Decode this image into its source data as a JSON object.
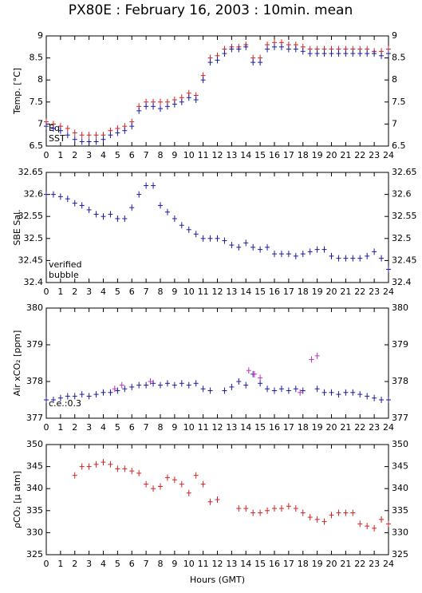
{
  "chart_data": [
    {
      "type": "scatter",
      "title": "PX80E : February 16, 2003 : 10min. mean",
      "ylabel": "Temp. [°C]",
      "xlim": [
        0,
        24
      ],
      "xticks": [
        0,
        1,
        2,
        3,
        4,
        5,
        6,
        7,
        8,
        9,
        10,
        11,
        12,
        13,
        14,
        15,
        16,
        17,
        18,
        19,
        20,
        21,
        22,
        23,
        24
      ],
      "ylim": [
        6.5,
        9
      ],
      "yticks": [
        6.5,
        7,
        7.5,
        8,
        8.5,
        9
      ],
      "series": [
        {
          "name": "Eq",
          "color": "#d42020",
          "x": [
            0,
            0.5,
            1,
            1.5,
            2,
            2.5,
            3,
            3.5,
            4,
            4.5,
            5,
            5.5,
            6,
            6.5,
            7,
            7.5,
            8,
            8.5,
            9,
            9.5,
            10,
            10.5,
            11,
            11.5,
            12,
            12.5,
            13,
            13.5,
            14,
            14.5,
            15,
            15.5,
            16,
            16.5,
            17,
            17.5,
            18,
            18.5,
            19,
            19.5,
            20,
            20.5,
            21,
            21.5,
            22,
            22.5,
            23,
            23.5,
            24
          ],
          "values": [
            7.05,
            7.0,
            6.95,
            6.9,
            6.8,
            6.75,
            6.75,
            6.75,
            6.75,
            6.85,
            6.9,
            6.95,
            7.05,
            7.4,
            7.5,
            7.5,
            7.5,
            7.5,
            7.55,
            7.6,
            7.7,
            7.65,
            8.1,
            8.5,
            8.55,
            8.7,
            8.75,
            8.75,
            8.8,
            8.5,
            8.5,
            8.8,
            8.85,
            8.85,
            8.8,
            8.8,
            8.75,
            8.7,
            8.7,
            8.7,
            8.7,
            8.7,
            8.7,
            8.7,
            8.7,
            8.7,
            8.65,
            8.65,
            8.7
          ]
        },
        {
          "name": "SST",
          "color": "#1a1aa0",
          "x": [
            0,
            0.5,
            1,
            1.5,
            2,
            2.5,
            3,
            3.5,
            4,
            4.5,
            5,
            5.5,
            6,
            6.5,
            7,
            7.5,
            8,
            8.5,
            9,
            9.5,
            10,
            10.5,
            11,
            11.5,
            12,
            12.5,
            13,
            13.5,
            14,
            14.5,
            15,
            15.5,
            16,
            16.5,
            17,
            17.5,
            18,
            18.5,
            19,
            19.5,
            20,
            20.5,
            21,
            21.5,
            22,
            22.5,
            23,
            23.5,
            24
          ],
          "values": [
            6.95,
            6.9,
            6.85,
            6.75,
            6.65,
            6.6,
            6.6,
            6.6,
            6.65,
            6.75,
            6.8,
            6.85,
            6.95,
            7.3,
            7.4,
            7.4,
            7.35,
            7.4,
            7.45,
            7.5,
            7.6,
            7.55,
            8.0,
            8.4,
            8.45,
            8.6,
            8.7,
            8.7,
            8.75,
            8.4,
            8.4,
            8.7,
            8.75,
            8.75,
            8.7,
            8.7,
            8.65,
            8.6,
            8.6,
            8.6,
            8.6,
            8.6,
            8.6,
            8.6,
            8.6,
            8.6,
            8.6,
            8.55,
            8.6
          ]
        }
      ]
    },
    {
      "type": "scatter",
      "ylabel": "SBE Sal.",
      "xlim": [
        0,
        24
      ],
      "xticks": [
        0,
        1,
        2,
        3,
        4,
        5,
        6,
        7,
        8,
        9,
        10,
        11,
        12,
        13,
        14,
        15,
        16,
        17,
        18,
        19,
        20,
        21,
        22,
        23,
        24
      ],
      "ylim": [
        32.4,
        32.65
      ],
      "yticks": [
        32.4,
        32.45,
        32.5,
        32.55,
        32.6,
        32.65
      ],
      "series": [
        {
          "name": "verified",
          "color": "#1a1aa0",
          "x": [
            0,
            0.5,
            1,
            1.5,
            2,
            2.5,
            3,
            3.5,
            4,
            4.5,
            5,
            5.5,
            6,
            6.5,
            7,
            7.5,
            8,
            8.5,
            9,
            9.5,
            10,
            10.5,
            11,
            11.5,
            12,
            12.5,
            13,
            13.5,
            14,
            14.5,
            15,
            15.5,
            16,
            16.5,
            17,
            17.5,
            18,
            18.5,
            19,
            19.5,
            20,
            20.5,
            21,
            21.5,
            22,
            22.5,
            23,
            23.5,
            24
          ],
          "values": [
            32.6,
            32.6,
            32.595,
            32.59,
            32.58,
            32.575,
            32.565,
            32.555,
            32.55,
            32.555,
            32.545,
            32.545,
            32.57,
            32.6,
            32.62,
            32.62,
            32.575,
            32.56,
            32.545,
            32.53,
            32.52,
            32.51,
            32.5,
            32.5,
            32.5,
            32.495,
            32.485,
            32.48,
            32.49,
            32.48,
            32.475,
            32.48,
            32.465,
            32.465,
            32.465,
            32.46,
            32.465,
            32.47,
            32.475,
            32.475,
            32.46,
            32.455,
            32.455,
            32.455,
            32.455,
            32.46,
            32.47,
            32.455,
            32.43
          ]
        },
        {
          "name": "bubble",
          "color": "#c030c0",
          "x": [],
          "values": []
        }
      ]
    },
    {
      "type": "scatter",
      "ylabel": "Air xCO₂ [ppm]",
      "annotation": "c.e.:0.3",
      "xlim": [
        0,
        24
      ],
      "xticks": [
        0,
        1,
        2,
        3,
        4,
        5,
        6,
        7,
        8,
        9,
        10,
        11,
        12,
        13,
        14,
        15,
        16,
        17,
        18,
        19,
        20,
        21,
        22,
        23,
        24
      ],
      "ylim": [
        377,
        380
      ],
      "yticks": [
        377,
        378,
        379,
        380
      ],
      "series": [
        {
          "color": "#1a1aa0",
          "x": [
            0,
            0.5,
            1,
            1.5,
            2,
            2.5,
            3,
            3.5,
            4,
            4.5,
            5,
            5.5,
            6,
            6.5,
            7,
            7.5,
            8,
            8.5,
            9,
            9.5,
            10,
            10.5,
            11,
            11.5,
            12,
            12.5,
            13,
            13.5,
            14,
            14.5,
            15,
            15.5,
            16,
            16.5,
            17,
            17.5,
            18,
            18.5,
            19,
            19.5,
            20,
            20.5,
            21,
            21.5,
            22,
            22.5,
            23,
            23.5,
            24
          ],
          "values": [
            377.5,
            377.5,
            377.55,
            377.6,
            377.6,
            377.65,
            377.6,
            377.65,
            377.7,
            377.7,
            377.75,
            377.8,
            377.85,
            377.9,
            377.9,
            377.95,
            377.9,
            377.95,
            377.9,
            377.95,
            377.9,
            377.95,
            377.8,
            377.75,
            null,
            377.75,
            377.85,
            378.0,
            377.9,
            378.2,
            377.95,
            377.8,
            377.75,
            377.8,
            377.75,
            377.8,
            377.75,
            null,
            377.8,
            377.7,
            377.7,
            377.65,
            377.7,
            377.7,
            377.65,
            377.6,
            377.55,
            377.5,
            377.5
          ]
        },
        {
          "color": "#c030c0",
          "x": [
            4.8,
            5.3,
            7.3,
            14.2,
            14.6,
            15,
            17.8,
            18.6,
            19
          ],
          "values": [
            377.8,
            377.9,
            378.0,
            378.3,
            378.2,
            378.1,
            377.7,
            378.6,
            378.7
          ]
        }
      ]
    },
    {
      "type": "scatter",
      "ylabel": "ρCO₂ [μ atm]",
      "xlabel": "Hours (GMT)",
      "xlim": [
        0,
        24
      ],
      "xticks": [
        0,
        1,
        2,
        3,
        4,
        5,
        6,
        7,
        8,
        9,
        10,
        11,
        12,
        13,
        14,
        15,
        16,
        17,
        18,
        19,
        20,
        21,
        22,
        23,
        24
      ],
      "ylim": [
        325,
        350
      ],
      "yticks": [
        325,
        330,
        335,
        340,
        345,
        350
      ],
      "series": [
        {
          "color": "#d42020",
          "x": [
            0,
            0.5,
            1,
            1.5,
            2,
            2.5,
            3,
            3.5,
            4,
            4.5,
            5,
            5.5,
            6,
            6.5,
            7,
            7.5,
            8,
            8.5,
            9,
            9.5,
            10,
            10.5,
            11,
            11.5,
            12,
            12.5,
            13,
            13.5,
            14,
            14.5,
            15,
            15.5,
            16,
            16.5,
            17,
            17.5,
            18,
            18.5,
            19,
            19.5,
            20,
            20.5,
            21,
            21.5,
            22,
            22.5,
            23,
            23.5,
            24
          ],
          "values": [
            null,
            null,
            null,
            null,
            343,
            345,
            345,
            345.5,
            346,
            345.5,
            344.5,
            344.5,
            344,
            343.5,
            341,
            340,
            340.5,
            342.5,
            342,
            341,
            339,
            343,
            341,
            337,
            337.5,
            null,
            null,
            335.5,
            335.5,
            334.5,
            334.5,
            335,
            335.5,
            335.5,
            336,
            335.5,
            334.5,
            333.5,
            333,
            332.5,
            334,
            334.5,
            334.5,
            334.5,
            332,
            331.5,
            331,
            333,
            332
          ]
        }
      ]
    }
  ]
}
